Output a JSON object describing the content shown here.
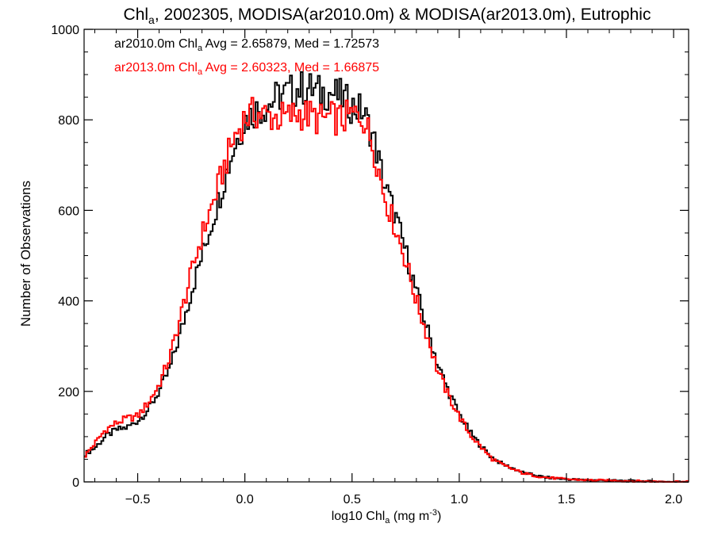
{
  "chart_data": {
    "type": "line",
    "title": {
      "pre": "Chl",
      "sub": "a",
      "post": ", 2002305, MODISA(ar2010.0m) & MODISA(ar2013.0m), Eutrophic"
    },
    "xlabel": {
      "pre": "log10 Chl",
      "sub": "a",
      "post": " (mg m",
      "sup": "-3",
      "end": ")"
    },
    "ylabel": "Number of Observations",
    "xlim": [
      -0.75,
      2.07
    ],
    "ylim": [
      0,
      1000
    ],
    "xticks": [
      -0.5,
      0.0,
      0.5,
      1.0,
      1.5,
      2.0
    ],
    "xtick_labels": [
      "−0.5",
      "0.0",
      "0.5",
      "1.0",
      "1.5",
      "2.0"
    ],
    "yticks": [
      0,
      200,
      400,
      600,
      800,
      1000
    ],
    "ytick_labels": [
      "0",
      "200",
      "400",
      "600",
      "800",
      "1000"
    ],
    "legend_position": "top-left",
    "series": [
      {
        "name": "ar2010.0m",
        "label": {
          "pre": "ar2010.0m Chl",
          "sub": "a",
          "post": " Avg = 2.65879, Med = 1.72573"
        },
        "color": "#000000",
        "points": [
          [
            -0.75,
            60
          ],
          [
            -0.7,
            75
          ],
          [
            -0.65,
            100
          ],
          [
            -0.6,
            115
          ],
          [
            -0.55,
            120
          ],
          [
            -0.5,
            135
          ],
          [
            -0.45,
            160
          ],
          [
            -0.4,
            200
          ],
          [
            -0.35,
            250
          ],
          [
            -0.3,
            330
          ],
          [
            -0.25,
            420
          ],
          [
            -0.2,
            500
          ],
          [
            -0.15,
            580
          ],
          [
            -0.1,
            660
          ],
          [
            -0.05,
            740
          ],
          [
            0.0,
            800
          ],
          [
            0.05,
            820
          ],
          [
            0.1,
            830
          ],
          [
            0.15,
            850
          ],
          [
            0.2,
            860
          ],
          [
            0.25,
            870
          ],
          [
            0.3,
            870
          ],
          [
            0.35,
            860
          ],
          [
            0.4,
            860
          ],
          [
            0.45,
            850
          ],
          [
            0.5,
            830
          ],
          [
            0.55,
            820
          ],
          [
            0.6,
            760
          ],
          [
            0.65,
            660
          ],
          [
            0.7,
            590
          ],
          [
            0.75,
            510
          ],
          [
            0.8,
            420
          ],
          [
            0.85,
            340
          ],
          [
            0.9,
            260
          ],
          [
            0.95,
            200
          ],
          [
            1.0,
            150
          ],
          [
            1.05,
            110
          ],
          [
            1.1,
            80
          ],
          [
            1.15,
            55
          ],
          [
            1.2,
            40
          ],
          [
            1.25,
            30
          ],
          [
            1.3,
            20
          ],
          [
            1.35,
            15
          ],
          [
            1.4,
            10
          ],
          [
            1.45,
            8
          ],
          [
            1.5,
            6
          ],
          [
            1.6,
            4
          ],
          [
            1.7,
            3
          ],
          [
            1.8,
            2
          ],
          [
            1.9,
            1
          ],
          [
            2.0,
            0
          ],
          [
            2.07,
            0
          ]
        ]
      },
      {
        "name": "ar2013.0m",
        "label": {
          "pre": "ar2013.0m Chl",
          "sub": "a",
          "post": " Avg = 2.60323, Med = 1.66875"
        },
        "color": "#ff0000",
        "points": [
          [
            -0.75,
            55
          ],
          [
            -0.7,
            85
          ],
          [
            -0.65,
            115
          ],
          [
            -0.6,
            130
          ],
          [
            -0.55,
            140
          ],
          [
            -0.5,
            145
          ],
          [
            -0.45,
            175
          ],
          [
            -0.4,
            215
          ],
          [
            -0.35,
            275
          ],
          [
            -0.3,
            365
          ],
          [
            -0.25,
            460
          ],
          [
            -0.2,
            545
          ],
          [
            -0.15,
            615
          ],
          [
            -0.1,
            690
          ],
          [
            -0.05,
            760
          ],
          [
            0.0,
            805
          ],
          [
            0.05,
            815
          ],
          [
            0.1,
            810
          ],
          [
            0.15,
            805
          ],
          [
            0.2,
            805
          ],
          [
            0.25,
            815
          ],
          [
            0.3,
            810
          ],
          [
            0.35,
            800
          ],
          [
            0.4,
            805
          ],
          [
            0.45,
            800
          ],
          [
            0.5,
            810
          ],
          [
            0.55,
            810
          ],
          [
            0.6,
            740
          ],
          [
            0.65,
            635
          ],
          [
            0.7,
            565
          ],
          [
            0.75,
            490
          ],
          [
            0.8,
            400
          ],
          [
            0.85,
            325
          ],
          [
            0.9,
            245
          ],
          [
            0.95,
            190
          ],
          [
            1.0,
            145
          ],
          [
            1.05,
            105
          ],
          [
            1.1,
            78
          ],
          [
            1.15,
            52
          ],
          [
            1.2,
            38
          ],
          [
            1.25,
            28
          ],
          [
            1.3,
            19
          ],
          [
            1.35,
            14
          ],
          [
            1.4,
            10
          ],
          [
            1.45,
            8
          ],
          [
            1.5,
            6
          ],
          [
            1.6,
            4
          ],
          [
            1.7,
            3
          ],
          [
            1.8,
            2
          ],
          [
            1.9,
            1
          ],
          [
            2.0,
            1
          ],
          [
            2.07,
            0
          ]
        ]
      }
    ]
  }
}
